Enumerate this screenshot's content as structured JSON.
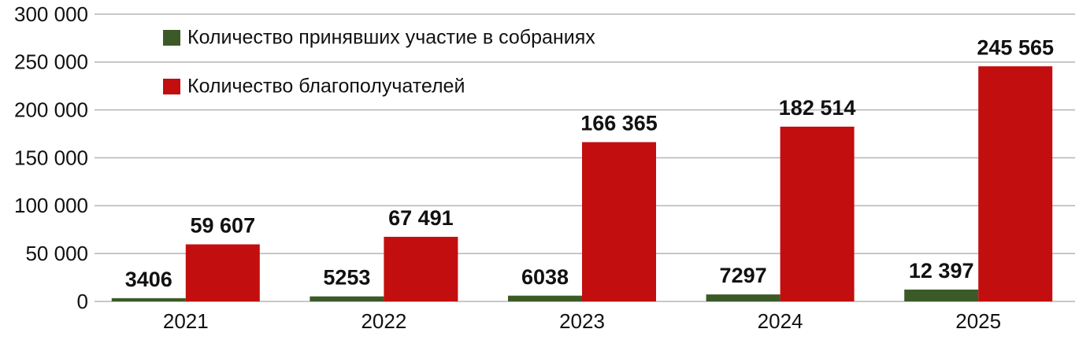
{
  "chart_data": {
    "type": "bar",
    "categories": [
      "2021",
      "2022",
      "2023",
      "2024",
      "2025"
    ],
    "series": [
      {
        "name": "Количество принявших участие в собраниях",
        "color": "#3b5a27",
        "values": [
          3406,
          5253,
          6038,
          7297,
          12397
        ],
        "value_labels": [
          "3406",
          "5253",
          "6038",
          "7297",
          "12 397"
        ]
      },
      {
        "name": "Количество благополучателей",
        "color": "#c20e0e",
        "values": [
          59607,
          67491,
          166365,
          182514,
          245565
        ],
        "value_labels": [
          "59 607",
          "67 491",
          "166 365",
          "182 514",
          "245 565"
        ]
      }
    ],
    "ylim": [
      0,
      300000
    ],
    "yticks": [
      0,
      {
        "value": 50000,
        "label": "50 000"
      },
      {
        "value": 100000,
        "label": "100 000"
      },
      {
        "value": 150000,
        "label": "150 000"
      },
      {
        "value": 200000,
        "label": "200 000"
      },
      {
        "value": 250000,
        "label": "250 000"
      },
      {
        "value": 300000,
        "label": "300 000"
      }
    ],
    "grid": true
  }
}
